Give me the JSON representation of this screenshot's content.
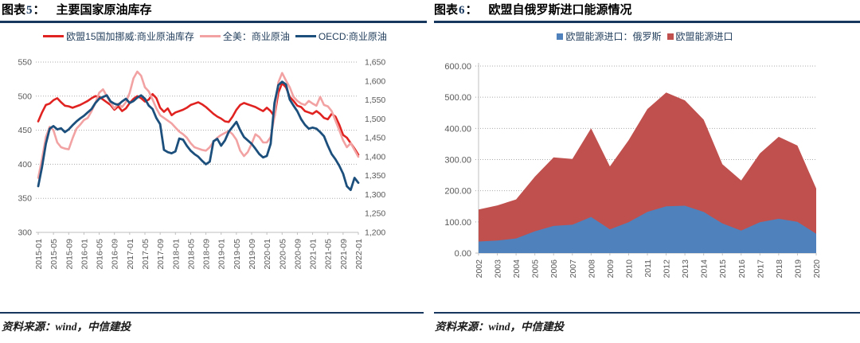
{
  "page": {
    "background": "#ffffff",
    "accent_rule_color": "#17375e"
  },
  "panels": [
    {
      "fig_label": "图表",
      "fig_number": "5",
      "fig_colon": "：",
      "title": "主要国家原油库存",
      "source": "资料来源：wind，中信建投"
    },
    {
      "fig_label": "图表",
      "fig_number": "6",
      "fig_colon": "：",
      "title": "欧盟自俄罗斯进口能源情况",
      "source": "资料来源：wind，中信建投"
    }
  ],
  "chart_data": [
    {
      "type": "line",
      "title": "主要国家原油库存",
      "grid": "horizontal-dotted",
      "legend_position": "top",
      "x_monthly_start": "2015-01",
      "x_monthly_end": "2022-01",
      "x_tick_every_months": 4,
      "x_tick_labels": [
        "2015-01",
        "2015-05",
        "2015-09",
        "2016-01",
        "2016-05",
        "2016-09",
        "2017-01",
        "2017-05",
        "2017-09",
        "2018-01",
        "2018-05",
        "2018-09",
        "2019-01",
        "2019-05",
        "2019-09",
        "2020-01",
        "2020-05",
        "2020-09",
        "2021-01",
        "2021-05",
        "2021-09",
        "2022-01"
      ],
      "left_axis": {
        "min": 300,
        "max": 550,
        "tick_labels": [
          "550",
          "500",
          "450",
          "400",
          "350",
          "300"
        ],
        "tick_values": [
          550,
          500,
          450,
          400,
          350,
          300
        ]
      },
      "right_axis": {
        "min": 1200,
        "max": 1650,
        "tick_labels": [
          "1,650",
          "1,600",
          "1,550",
          "1,500",
          "1,450",
          "1,400",
          "1,350",
          "1,300",
          "1,250",
          "1,200"
        ],
        "tick_values": [
          1650,
          1600,
          1550,
          1500,
          1450,
          1400,
          1350,
          1300,
          1250,
          1200
        ]
      },
      "series": [
        {
          "name": "欧盟15国加挪威:商业原油库存",
          "color": "#e02320",
          "axis": "left",
          "width": 2.6,
          "values": [
            463,
            476,
            487,
            489,
            494,
            497,
            491,
            486,
            485,
            483,
            485,
            487,
            490,
            493,
            497,
            500,
            499,
            495,
            491,
            487,
            480,
            485,
            478,
            482,
            490,
            496,
            500,
            497,
            492,
            495,
            503,
            497,
            483,
            477,
            482,
            472,
            476,
            478,
            480,
            483,
            487,
            489,
            491,
            488,
            484,
            479,
            474,
            470,
            467,
            463,
            462,
            470,
            480,
            487,
            490,
            488,
            486,
            484,
            481,
            478,
            483,
            478,
            470,
            505,
            519,
            513,
            499,
            493,
            486,
            484,
            478,
            476,
            474,
            478,
            474,
            468,
            466,
            474,
            470,
            458,
            443,
            439,
            431,
            423,
            414
          ]
        },
        {
          "name": "全美：商业原油",
          "color": "#f2a2a2",
          "axis": "left",
          "width": 2.6,
          "values": [
            380,
            408,
            440,
            455,
            450,
            432,
            425,
            423,
            422,
            438,
            452,
            458,
            465,
            468,
            478,
            490,
            505,
            510,
            500,
            490,
            482,
            489,
            484,
            491,
            505,
            526,
            536,
            530,
            513,
            507,
            495,
            482,
            472,
            468,
            464,
            460,
            454,
            448,
            444,
            439,
            431,
            425,
            423,
            421,
            420,
            425,
            433,
            439,
            443,
            446,
            449,
            444,
            436,
            420,
            412,
            418,
            430,
            444,
            440,
            432,
            432,
            440,
            470,
            520,
            534,
            523,
            513,
            499,
            493,
            489,
            487,
            493,
            489,
            486,
            499,
            487,
            485,
            478,
            464,
            450,
            435,
            425,
            431,
            421,
            411
          ]
        },
        {
          "name": "OECD:商业原油",
          "color": "#1c4f7c",
          "axis": "right",
          "width": 2.8,
          "values": [
            1322,
            1373,
            1434,
            1474,
            1481,
            1472,
            1475,
            1465,
            1472,
            1483,
            1493,
            1501,
            1508,
            1517,
            1526,
            1542,
            1553,
            1558,
            1562,
            1546,
            1540,
            1537,
            1546,
            1553,
            1542,
            1547,
            1556,
            1562,
            1553,
            1535,
            1526,
            1502,
            1486,
            1418,
            1412,
            1409,
            1414,
            1448,
            1445,
            1429,
            1416,
            1407,
            1400,
            1389,
            1380,
            1387,
            1441,
            1447,
            1429,
            1443,
            1466,
            1479,
            1492,
            1470,
            1452,
            1443,
            1434,
            1421,
            1407,
            1398,
            1402,
            1434,
            1542,
            1589,
            1598,
            1591,
            1551,
            1535,
            1520,
            1499,
            1484,
            1474,
            1477,
            1474,
            1465,
            1454,
            1429,
            1407,
            1393,
            1376,
            1355,
            1322,
            1312,
            1344,
            1331
          ]
        }
      ]
    },
    {
      "type": "area",
      "title": "欧盟自俄罗斯进口能源情况",
      "grid": "horizontal-dotted",
      "legend_position": "top",
      "categories": [
        "2002",
        "2003",
        "2004",
        "2005",
        "2006",
        "2007",
        "2008",
        "2009",
        "2010",
        "2011",
        "2012",
        "2013",
        "2014",
        "2015",
        "2016",
        "2017",
        "2018",
        "2019",
        "2020"
      ],
      "y_axis": {
        "min": 0,
        "max": 600,
        "tick_labels": [
          "600.00",
          "500.00",
          "400.00",
          "300.00",
          "200.00",
          "100.00",
          "0.00"
        ],
        "tick_values": [
          600,
          500,
          400,
          300,
          200,
          100,
          0
        ]
      },
      "series": [
        {
          "name": "欧盟能源进口",
          "color": "#c0504d",
          "values": [
            140,
            153,
            172,
            245,
            307,
            302,
            400,
            278,
            362,
            462,
            515,
            490,
            428,
            285,
            233,
            320,
            373,
            345,
            207
          ]
        },
        {
          "name": "欧盟能源进口：俄罗斯",
          "color": "#4f81bd",
          "values": [
            37,
            40,
            47,
            70,
            87,
            91,
            116,
            76,
            99,
            132,
            150,
            152,
            132,
            95,
            72,
            99,
            110,
            100,
            62
          ]
        }
      ],
      "legend_order": [
        1,
        0
      ]
    }
  ]
}
